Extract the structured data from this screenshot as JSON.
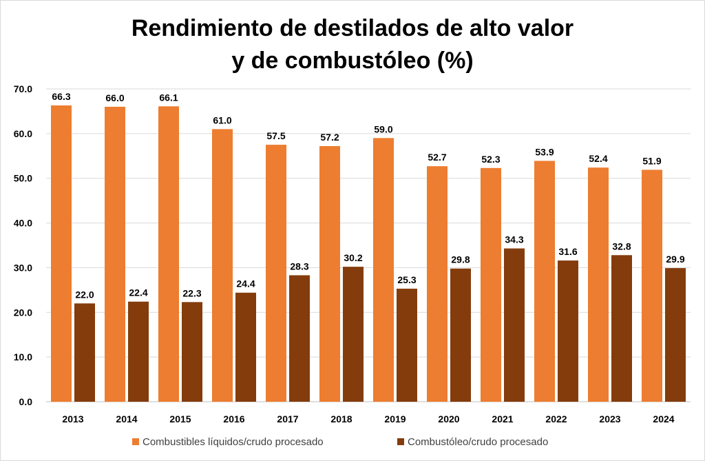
{
  "chart_data": {
    "type": "bar",
    "title_lines": [
      "Rendimiento de destilados de alto valor",
      "y de combustóleo (%)"
    ],
    "categories": [
      "2013",
      "2014",
      "2015",
      "2016",
      "2017",
      "2018",
      "2019",
      "2020",
      "2021",
      "2022",
      "2023",
      "2024"
    ],
    "series": [
      {
        "name": "Combustibles líquidos/crudo procesado",
        "color": "#ED7D31",
        "values": [
          66.3,
          66.0,
          66.1,
          61.0,
          57.5,
          57.2,
          59.0,
          52.7,
          52.3,
          53.9,
          52.4,
          51.9
        ],
        "labels": [
          "66.3",
          "66.0",
          "66.1",
          "61.0",
          "57.5",
          "57.2",
          "59.0",
          "52.7",
          "52.3",
          "53.9",
          "52.4",
          "51.9"
        ]
      },
      {
        "name": "Combustóleo/crudo procesado",
        "color": "#843C0C",
        "values": [
          22.0,
          22.4,
          22.3,
          24.4,
          28.3,
          30.2,
          25.3,
          29.8,
          34.3,
          31.6,
          32.8,
          29.9
        ],
        "labels": [
          "22.0",
          "22.4",
          "22.3",
          "24.4",
          "28.3",
          "30.2",
          "25.3",
          "29.8",
          "34.3",
          "31.6",
          "32.8",
          "29.9"
        ]
      }
    ],
    "ylim": [
      0,
      70
    ],
    "yticks": [
      "0.0",
      "10.0",
      "20.0",
      "30.0",
      "40.0",
      "50.0",
      "60.0",
      "70.0"
    ],
    "grid": true,
    "legend_position": "bottom",
    "xlabel": "",
    "ylabel": ""
  }
}
